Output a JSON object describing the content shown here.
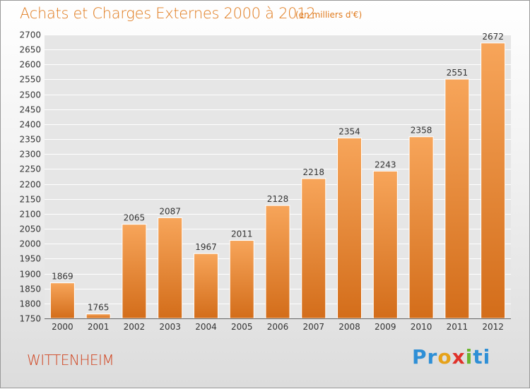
{
  "header": {
    "title": "Achats et Charges Externes 2000 à 2012",
    "subtitle": "(en milliers d'€)"
  },
  "footer": {
    "commune": "WITTENHEIM",
    "logo": "Proxiti",
    "logo_letters": [
      "P",
      "r",
      "o",
      "x",
      "i",
      "ti"
    ]
  },
  "colors": {
    "bar_top": "#f7a55a",
    "bar_bottom": "#d36d1a",
    "title": "#e07b1e",
    "commune": "#d0421d",
    "grid": "#ffffff",
    "plot_bg": "#e6e6e6"
  },
  "chart_data": {
    "type": "bar",
    "title": "Achats et Charges Externes 2000 à 2012",
    "subtitle": "(en milliers d'€)",
    "xlabel": "",
    "ylabel": "",
    "categories": [
      "2000",
      "2001",
      "2002",
      "2003",
      "2004",
      "2005",
      "2006",
      "2007",
      "2008",
      "2009",
      "2010",
      "2011",
      "2012"
    ],
    "values": [
      1869,
      1765,
      2065,
      2087,
      1967,
      2011,
      2128,
      2218,
      2354,
      2243,
      2358,
      2551,
      2672
    ],
    "ylim": [
      1750,
      2700
    ],
    "yticks": [
      1750,
      1800,
      1850,
      1900,
      1950,
      2000,
      2050,
      2100,
      2150,
      2200,
      2250,
      2300,
      2350,
      2400,
      2450,
      2500,
      2550,
      2600,
      2650,
      2700
    ],
    "grid": true,
    "legend": "none"
  }
}
